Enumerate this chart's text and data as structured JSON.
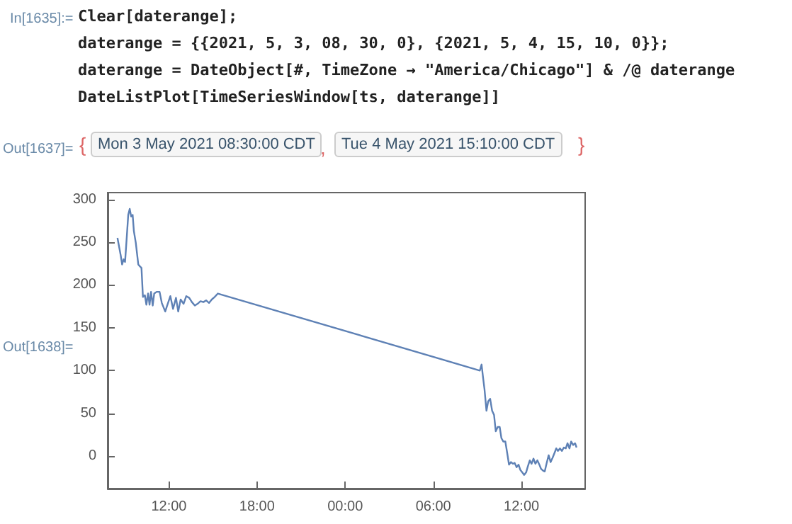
{
  "chart_data": {
    "type": "line",
    "color": "#5e81b5",
    "annotations": [
      "In[1635]:=",
      "Clear[daterange];",
      "daterange = {{2021, 5, 3, 08, 30, 0}, {2021, 5, 4, 15, 10, 0}};",
      "daterange = DateObject[#, TimeZone → \"America/Chicago\"] & /@ daterange",
      "DateListPlot[TimeSeriesWindow[ts, daterange]]",
      "Out[1637]=",
      "{",
      "Mon 3 May 2021 08:30:00 CDT",
      ",",
      "Tue 4 May 2021 15:10:00 CDT",
      "}",
      "Out[1638]="
    ],
    "x": [
      "2021-05-03T08:30",
      "2021-05-03T08:43",
      "2021-05-03T08:49",
      "2021-05-03T08:55",
      "2021-05-03T09:01",
      "2021-05-03T09:07",
      "2021-05-03T09:14",
      "2021-05-03T09:20",
      "2021-05-03T09:26",
      "2021-05-03T09:32",
      "2021-05-03T09:37",
      "2021-05-03T09:45",
      "2021-05-03T09:55",
      "2021-05-03T10:01",
      "2021-05-03T10:08",
      "2021-05-03T10:14",
      "2021-05-03T10:22",
      "2021-05-03T10:28",
      "2021-05-03T10:35",
      "2021-05-03T10:41",
      "2021-05-03T10:47",
      "2021-05-03T10:54",
      "2021-05-03T11:00",
      "2021-05-03T11:10",
      "2021-05-03T11:22",
      "2021-05-03T11:31",
      "2021-05-03T11:45",
      "2021-05-03T11:54",
      "2021-05-03T12:06",
      "2021-05-03T12:17",
      "2021-05-03T12:29",
      "2021-05-03T12:38",
      "2021-05-03T12:48",
      "2021-05-03T13:00",
      "2021-05-03T13:11",
      "2021-05-03T13:23",
      "2021-05-03T13:34",
      "2021-05-03T13:46",
      "2021-05-03T13:57",
      "2021-05-03T14:09",
      "2021-05-03T14:21",
      "2021-05-03T14:32",
      "2021-05-03T14:44",
      "2021-05-03T14:55",
      "2021-05-03T15:07",
      "2021-05-03T15:20",
      "2021-05-04T09:10",
      "2021-05-04T09:17",
      "2021-05-04T09:23",
      "2021-05-04T09:29",
      "2021-05-04T09:37",
      "2021-05-04T09:44",
      "2021-05-04T09:52",
      "2021-05-04T10:00",
      "2021-05-04T10:08",
      "2021-05-04T10:15",
      "2021-05-04T10:23",
      "2021-05-04T10:31",
      "2021-05-04T10:38",
      "2021-05-04T10:46",
      "2021-05-04T10:54",
      "2021-05-04T11:02",
      "2021-05-04T11:09",
      "2021-05-04T11:17",
      "2021-05-04T11:25",
      "2021-05-04T11:32",
      "2021-05-04T11:40",
      "2021-05-04T11:48",
      "2021-05-04T11:55",
      "2021-05-04T12:03",
      "2021-05-04T12:11",
      "2021-05-04T12:19",
      "2021-05-04T12:26",
      "2021-05-04T12:34",
      "2021-05-04T12:41",
      "2021-05-04T12:49",
      "2021-05-04T12:57",
      "2021-05-04T13:05",
      "2021-05-04T13:13",
      "2021-05-04T13:20",
      "2021-05-04T13:28",
      "2021-05-04T13:35",
      "2021-05-04T13:43",
      "2021-05-04T13:51",
      "2021-05-04T13:59",
      "2021-05-04T14:07",
      "2021-05-04T14:14",
      "2021-05-04T14:22",
      "2021-05-04T14:29",
      "2021-05-04T14:37",
      "2021-05-04T14:45",
      "2021-05-04T14:53",
      "2021-05-04T15:01",
      "2021-05-04T15:08",
      "2021-05-04T15:16",
      "2021-05-04T15:23",
      "2021-05-04T15:31",
      "2021-05-04T15:39",
      "2021-05-04T15:45"
    ],
    "values": [
      255,
      235,
      224,
      230,
      227,
      252,
      282,
      289,
      280,
      282,
      263,
      249,
      224,
      222,
      220,
      186,
      188,
      177,
      190,
      177,
      192,
      176,
      190,
      192,
      192,
      179,
      169,
      177,
      187,
      172,
      185,
      169,
      183,
      178,
      187,
      185,
      180,
      176,
      178,
      181,
      180,
      182,
      179,
      183,
      186,
      190,
      100,
      107,
      92,
      78,
      53,
      64,
      67,
      53,
      48,
      29,
      34,
      34,
      21,
      17,
      17,
      3,
      -10,
      -7,
      -9,
      -8,
      -13,
      -10,
      -16,
      -19,
      -22,
      -19,
      -12,
      -5,
      -9,
      -3,
      -9,
      -5,
      -10,
      -15,
      -17,
      -18,
      -8,
      1,
      -7,
      -2,
      3,
      9,
      6,
      9,
      6,
      10,
      9,
      15,
      9,
      17,
      13,
      15,
      10
    ],
    "xlim": [
      "2021-05-03T07:50",
      "2021-05-04T16:20"
    ],
    "xticks": [
      {
        "value": "2021-05-03T12:00",
        "label": "12:00"
      },
      {
        "value": "2021-05-03T18:00",
        "label": "18:00"
      },
      {
        "value": "2021-05-04T00:00",
        "label": "00:00"
      },
      {
        "value": "2021-05-04T06:00",
        "label": "06:00"
      },
      {
        "value": "2021-05-04T12:00",
        "label": "12:00"
      }
    ],
    "ylim": [
      -38,
      308
    ],
    "yticks": [
      0,
      50,
      100,
      150,
      200,
      250,
      300
    ],
    "grid": false,
    "marker": "none",
    "line_style": "solid"
  }
}
